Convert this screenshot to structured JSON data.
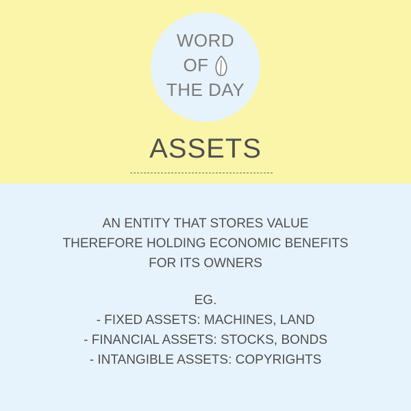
{
  "badge": {
    "line1": "WORD",
    "line2": "OF",
    "line3": "THE DAY",
    "icon": "leaf-icon"
  },
  "word": "ASSETS",
  "definition": [
    "AN ENTITY THAT STORES VALUE",
    "THEREFORE HOLDING ECONOMIC BENEFITS",
    "FOR ITS OWNERS"
  ],
  "examples": {
    "heading": "EG.",
    "items": [
      "- FIXED ASSETS: MACHINES, LAND",
      "- FINANCIAL ASSETS: STOCKS, BONDS",
      "- INTANGIBLE ASSETS: COPYRIGHTS"
    ]
  },
  "colors": {
    "top_background": "#faf5a8",
    "bottom_background": "#e6f3fd",
    "badge_background": "#e6f3fd",
    "badge_text": "#7b7b7b",
    "body_text": "#4f4f4f"
  }
}
